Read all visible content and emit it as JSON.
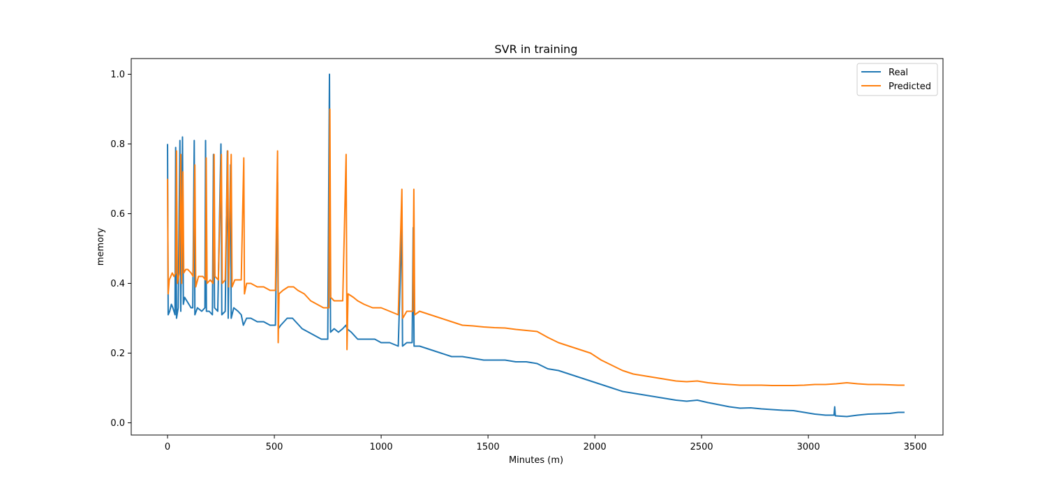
{
  "chart_data": {
    "type": "line",
    "title": "SVR in training",
    "xlabel": "Minutes (m)",
    "ylabel": "memory",
    "xlim": [
      -170,
      3630
    ],
    "ylim": [
      -0.035,
      1.045
    ],
    "x_ticks": [
      0,
      500,
      1000,
      1500,
      2000,
      2500,
      3000,
      3500
    ],
    "y_ticks": [
      0.0,
      0.2,
      0.4,
      0.6,
      0.8,
      1.0
    ],
    "x_tick_labels": [
      "0",
      "500",
      "1000",
      "1500",
      "2000",
      "2500",
      "3000",
      "3500"
    ],
    "y_tick_labels": [
      "0.0",
      "0.2",
      "0.4",
      "0.6",
      "0.8",
      "1.0"
    ],
    "grid": false,
    "legend_position": "top-right",
    "series": [
      {
        "name": "Real",
        "color": "#1f77b4",
        "points": [
          [
            0,
            0.8
          ],
          [
            3,
            0.31
          ],
          [
            10,
            0.32
          ],
          [
            18,
            0.34
          ],
          [
            25,
            0.33
          ],
          [
            35,
            0.31
          ],
          [
            38,
            0.79
          ],
          [
            42,
            0.3
          ],
          [
            50,
            0.33
          ],
          [
            58,
            0.81
          ],
          [
            62,
            0.32
          ],
          [
            70,
            0.82
          ],
          [
            74,
            0.34
          ],
          [
            80,
            0.36
          ],
          [
            90,
            0.35
          ],
          [
            100,
            0.34
          ],
          [
            110,
            0.33
          ],
          [
            118,
            0.33
          ],
          [
            125,
            0.81
          ],
          [
            128,
            0.31
          ],
          [
            140,
            0.33
          ],
          [
            160,
            0.32
          ],
          [
            175,
            0.33
          ],
          [
            178,
            0.81
          ],
          [
            182,
            0.32
          ],
          [
            195,
            0.32
          ],
          [
            210,
            0.31
          ],
          [
            215,
            0.77
          ],
          [
            220,
            0.33
          ],
          [
            235,
            0.32
          ],
          [
            250,
            0.8
          ],
          [
            254,
            0.31
          ],
          [
            270,
            0.32
          ],
          [
            280,
            0.78
          ],
          [
            284,
            0.3
          ],
          [
            295,
            0.74
          ],
          [
            298,
            0.3
          ],
          [
            310,
            0.33
          ],
          [
            330,
            0.32
          ],
          [
            345,
            0.31
          ],
          [
            355,
            0.28
          ],
          [
            370,
            0.3
          ],
          [
            390,
            0.3
          ],
          [
            420,
            0.29
          ],
          [
            450,
            0.29
          ],
          [
            480,
            0.28
          ],
          [
            505,
            0.28
          ],
          [
            515,
            0.69
          ],
          [
            519,
            0.27
          ],
          [
            530,
            0.28
          ],
          [
            560,
            0.3
          ],
          [
            585,
            0.3
          ],
          [
            600,
            0.29
          ],
          [
            630,
            0.27
          ],
          [
            660,
            0.26
          ],
          [
            690,
            0.25
          ],
          [
            720,
            0.24
          ],
          [
            750,
            0.24
          ],
          [
            758,
            1.0
          ],
          [
            763,
            0.26
          ],
          [
            780,
            0.27
          ],
          [
            800,
            0.26
          ],
          [
            820,
            0.27
          ],
          [
            835,
            0.28
          ],
          [
            840,
            0.27
          ],
          [
            860,
            0.26
          ],
          [
            890,
            0.24
          ],
          [
            930,
            0.24
          ],
          [
            970,
            0.24
          ],
          [
            1000,
            0.23
          ],
          [
            1040,
            0.23
          ],
          [
            1080,
            0.22
          ],
          [
            1097,
            0.57
          ],
          [
            1100,
            0.22
          ],
          [
            1120,
            0.23
          ],
          [
            1145,
            0.23
          ],
          [
            1150,
            0.56
          ],
          [
            1154,
            0.22
          ],
          [
            1180,
            0.22
          ],
          [
            1230,
            0.21
          ],
          [
            1280,
            0.2
          ],
          [
            1330,
            0.19
          ],
          [
            1380,
            0.19
          ],
          [
            1430,
            0.185
          ],
          [
            1480,
            0.18
          ],
          [
            1530,
            0.18
          ],
          [
            1580,
            0.18
          ],
          [
            1630,
            0.175
          ],
          [
            1680,
            0.175
          ],
          [
            1730,
            0.17
          ],
          [
            1780,
            0.155
          ],
          [
            1830,
            0.15
          ],
          [
            1880,
            0.14
          ],
          [
            1930,
            0.13
          ],
          [
            1980,
            0.12
          ],
          [
            2030,
            0.11
          ],
          [
            2080,
            0.1
          ],
          [
            2130,
            0.09
          ],
          [
            2180,
            0.085
          ],
          [
            2230,
            0.08
          ],
          [
            2280,
            0.075
          ],
          [
            2330,
            0.07
          ],
          [
            2380,
            0.065
          ],
          [
            2430,
            0.062
          ],
          [
            2480,
            0.065
          ],
          [
            2530,
            0.058
          ],
          [
            2580,
            0.052
          ],
          [
            2630,
            0.046
          ],
          [
            2680,
            0.042
          ],
          [
            2730,
            0.043
          ],
          [
            2780,
            0.04
          ],
          [
            2830,
            0.038
          ],
          [
            2880,
            0.036
          ],
          [
            2930,
            0.035
          ],
          [
            2980,
            0.03
          ],
          [
            3030,
            0.025
          ],
          [
            3080,
            0.022
          ],
          [
            3120,
            0.022
          ],
          [
            3123,
            0.046
          ],
          [
            3126,
            0.02
          ],
          [
            3180,
            0.018
          ],
          [
            3230,
            0.022
          ],
          [
            3280,
            0.025
          ],
          [
            3330,
            0.026
          ],
          [
            3380,
            0.027
          ],
          [
            3420,
            0.03
          ],
          [
            3450,
            0.03
          ]
        ]
      },
      {
        "name": "Predicted",
        "color": "#ff7f0e",
        "points": [
          [
            0,
            0.7
          ],
          [
            3,
            0.37
          ],
          [
            8,
            0.41
          ],
          [
            15,
            0.42
          ],
          [
            22,
            0.43
          ],
          [
            30,
            0.42
          ],
          [
            38,
            0.43
          ],
          [
            42,
            0.78
          ],
          [
            46,
            0.4
          ],
          [
            55,
            0.43
          ],
          [
            62,
            0.77
          ],
          [
            66,
            0.4
          ],
          [
            72,
            0.72
          ],
          [
            76,
            0.43
          ],
          [
            85,
            0.44
          ],
          [
            95,
            0.44
          ],
          [
            110,
            0.43
          ],
          [
            120,
            0.42
          ],
          [
            128,
            0.74
          ],
          [
            132,
            0.39
          ],
          [
            145,
            0.42
          ],
          [
            165,
            0.42
          ],
          [
            178,
            0.41
          ],
          [
            181,
            0.76
          ],
          [
            185,
            0.4
          ],
          [
            200,
            0.41
          ],
          [
            213,
            0.4
          ],
          [
            218,
            0.77
          ],
          [
            222,
            0.42
          ],
          [
            238,
            0.41
          ],
          [
            252,
            0.77
          ],
          [
            256,
            0.4
          ],
          [
            270,
            0.41
          ],
          [
            282,
            0.78
          ],
          [
            286,
            0.39
          ],
          [
            298,
            0.77
          ],
          [
            302,
            0.39
          ],
          [
            315,
            0.41
          ],
          [
            330,
            0.41
          ],
          [
            345,
            0.41
          ],
          [
            357,
            0.76
          ],
          [
            360,
            0.37
          ],
          [
            370,
            0.4
          ],
          [
            390,
            0.4
          ],
          [
            420,
            0.39
          ],
          [
            450,
            0.39
          ],
          [
            480,
            0.38
          ],
          [
            505,
            0.38
          ],
          [
            515,
            0.78
          ],
          [
            518,
            0.23
          ],
          [
            522,
            0.37
          ],
          [
            540,
            0.38
          ],
          [
            565,
            0.39
          ],
          [
            590,
            0.39
          ],
          [
            610,
            0.38
          ],
          [
            640,
            0.37
          ],
          [
            670,
            0.35
          ],
          [
            700,
            0.34
          ],
          [
            730,
            0.33
          ],
          [
            755,
            0.33
          ],
          [
            760,
            0.9
          ],
          [
            764,
            0.36
          ],
          [
            780,
            0.35
          ],
          [
            800,
            0.35
          ],
          [
            820,
            0.35
          ],
          [
            836,
            0.77
          ],
          [
            840,
            0.21
          ],
          [
            845,
            0.37
          ],
          [
            870,
            0.36
          ],
          [
            890,
            0.35
          ],
          [
            920,
            0.34
          ],
          [
            960,
            0.33
          ],
          [
            1000,
            0.33
          ],
          [
            1040,
            0.32
          ],
          [
            1080,
            0.31
          ],
          [
            1097,
            0.67
          ],
          [
            1101,
            0.3
          ],
          [
            1120,
            0.32
          ],
          [
            1148,
            0.32
          ],
          [
            1153,
            0.67
          ],
          [
            1157,
            0.31
          ],
          [
            1180,
            0.32
          ],
          [
            1230,
            0.31
          ],
          [
            1280,
            0.3
          ],
          [
            1330,
            0.29
          ],
          [
            1380,
            0.28
          ],
          [
            1430,
            0.278
          ],
          [
            1480,
            0.275
          ],
          [
            1530,
            0.273
          ],
          [
            1580,
            0.272
          ],
          [
            1630,
            0.268
          ],
          [
            1680,
            0.265
          ],
          [
            1730,
            0.262
          ],
          [
            1780,
            0.245
          ],
          [
            1830,
            0.23
          ],
          [
            1880,
            0.22
          ],
          [
            1930,
            0.21
          ],
          [
            1980,
            0.2
          ],
          [
            2030,
            0.18
          ],
          [
            2080,
            0.165
          ],
          [
            2130,
            0.15
          ],
          [
            2180,
            0.14
          ],
          [
            2230,
            0.135
          ],
          [
            2280,
            0.13
          ],
          [
            2330,
            0.125
          ],
          [
            2380,
            0.12
          ],
          [
            2430,
            0.118
          ],
          [
            2480,
            0.12
          ],
          [
            2530,
            0.115
          ],
          [
            2580,
            0.112
          ],
          [
            2630,
            0.11
          ],
          [
            2680,
            0.108
          ],
          [
            2730,
            0.108
          ],
          [
            2780,
            0.108
          ],
          [
            2830,
            0.107
          ],
          [
            2880,
            0.107
          ],
          [
            2930,
            0.107
          ],
          [
            2980,
            0.108
          ],
          [
            3030,
            0.11
          ],
          [
            3080,
            0.11
          ],
          [
            3130,
            0.112
          ],
          [
            3180,
            0.115
          ],
          [
            3230,
            0.112
          ],
          [
            3280,
            0.11
          ],
          [
            3330,
            0.11
          ],
          [
            3380,
            0.109
          ],
          [
            3420,
            0.108
          ],
          [
            3450,
            0.108
          ]
        ]
      }
    ]
  }
}
